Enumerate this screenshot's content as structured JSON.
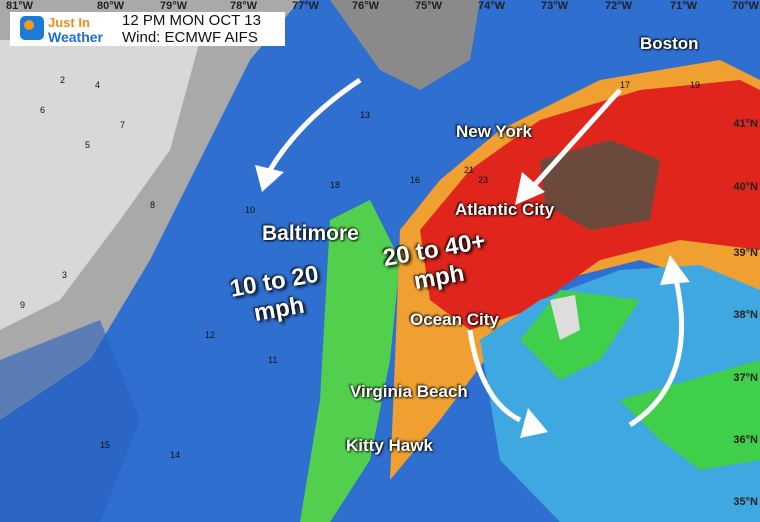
{
  "header": {
    "logo_top": "Just In",
    "logo_bottom": "Weather",
    "time": "12 PM MON OCT 13",
    "model": "Wind: ECMWF AIFS"
  },
  "longitudes": [
    "81°W",
    "80°W",
    "79°W",
    "78°W",
    "77°W",
    "76°W",
    "75°W",
    "74°W",
    "73°W",
    "72°W",
    "71°W",
    "70°W"
  ],
  "latitudes": [
    "41°N",
    "40°N",
    "39°N",
    "38°N",
    "37°N",
    "36°N",
    "35°N"
  ],
  "cities": [
    "Boston",
    "New York",
    "Atlantic City",
    "Baltimore",
    "Ocean City",
    "Virginia Beach",
    "Kitty Hawk"
  ],
  "annotations": {
    "inland": [
      "10 to 20",
      "mph"
    ],
    "coast": [
      "20 to 40+",
      "mph"
    ]
  },
  "colors": {
    "light": "#c8c8c8",
    "moderate": "#2f6fd0",
    "strong": "#3fcf4a",
    "very_strong": "#e0261c",
    "extreme": "#6b4a3c"
  },
  "wind_values": [
    "2",
    "4",
    "6",
    "5",
    "8",
    "10",
    "12",
    "13",
    "15",
    "16",
    "17",
    "18",
    "19",
    "21",
    "23",
    "14",
    "11",
    "9",
    "3",
    "7"
  ]
}
